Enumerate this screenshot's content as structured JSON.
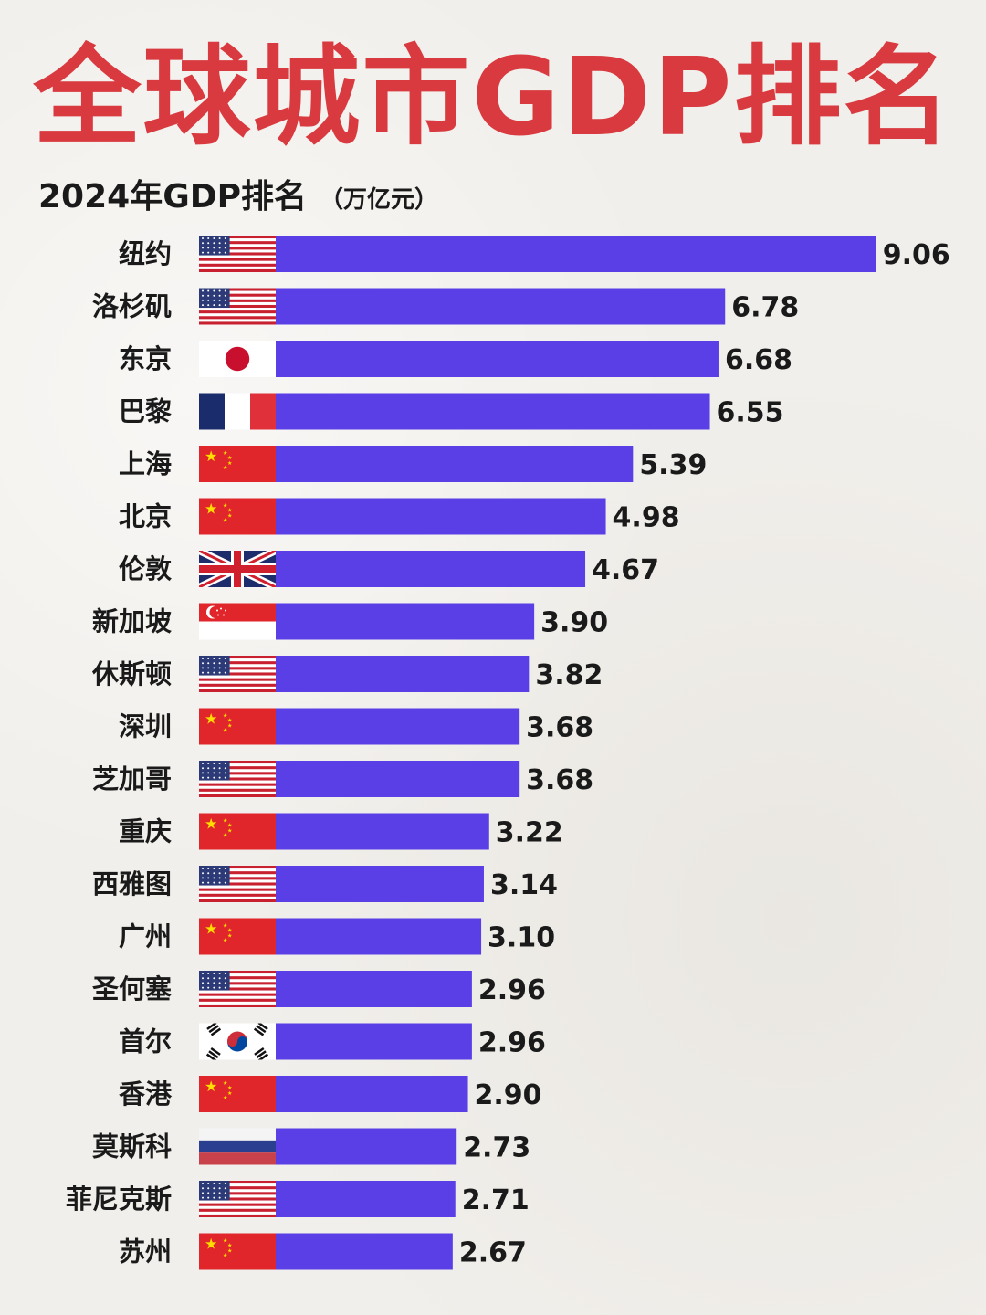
{
  "title": "全球城市GDP排名",
  "subtitle": {
    "main": "2024年GDP排名",
    "unit": "（万亿元）"
  },
  "colors": {
    "title": "#d93a3f",
    "bar": "#5a3ee6",
    "text": "#1a1a1a",
    "background": "#f1efeb"
  },
  "chart_data": {
    "type": "bar",
    "orientation": "horizontal",
    "categories": [
      "纽约",
      "洛杉矶",
      "东京",
      "巴黎",
      "上海",
      "北京",
      "伦敦",
      "新加坡",
      "休斯顿",
      "深圳",
      "芝加哥",
      "重庆",
      "西雅图",
      "广州",
      "圣何塞",
      "首尔",
      "香港",
      "莫斯科",
      "菲尼克斯",
      "苏州"
    ],
    "values": [
      9.06,
      6.78,
      6.68,
      6.55,
      5.39,
      4.98,
      4.67,
      3.9,
      3.82,
      3.68,
      3.68,
      3.22,
      3.14,
      3.1,
      2.96,
      2.96,
      2.9,
      2.73,
      2.71,
      2.67
    ],
    "value_labels": [
      "9.06",
      "6.78",
      "6.68",
      "6.55",
      "5.39",
      "4.98",
      "4.67",
      "3.90",
      "3.82",
      "3.68",
      "3.68",
      "3.22",
      "3.14",
      "3.10",
      "2.96",
      "2.96",
      "2.90",
      "2.73",
      "2.71",
      "2.67"
    ],
    "flags": [
      "us-flag-icon",
      "us-flag-icon",
      "japan-flag-icon",
      "france-flag-icon",
      "china-flag-icon",
      "china-flag-icon",
      "uk-flag-icon",
      "singapore-flag-icon",
      "us-flag-icon",
      "china-flag-icon",
      "us-flag-icon",
      "china-flag-icon",
      "us-flag-icon",
      "china-flag-icon",
      "us-flag-icon",
      "south-korea-flag-icon",
      "china-flag-icon",
      "russia-flag-icon",
      "us-flag-icon",
      "china-flag-icon"
    ],
    "grid": false,
    "legend": "none"
  }
}
